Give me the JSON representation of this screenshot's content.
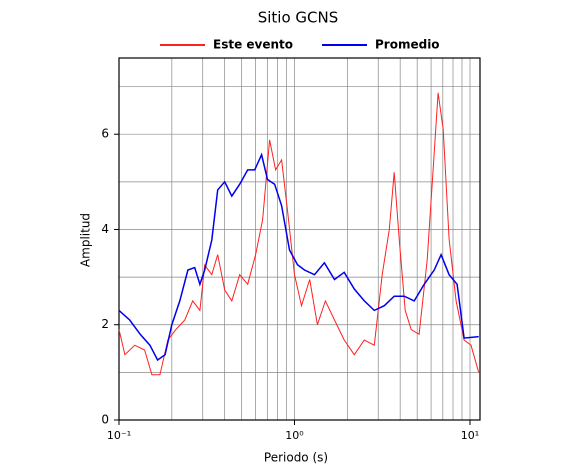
{
  "chart_data": {
    "type": "line",
    "title": "Sitio GCNS",
    "xlabel": "Periodo (s)",
    "ylabel": "Amplitud",
    "xscale": "log",
    "xlim": [
      0.1,
      11.4
    ],
    "ylim": [
      0,
      7.6
    ],
    "xticks": [
      {
        "value": 0.1,
        "label": "10⁻¹"
      },
      {
        "value": 1,
        "label": "10⁰"
      },
      {
        "value": 10,
        "label": "10¹"
      }
    ],
    "xminor": [
      0.2,
      0.3,
      0.4,
      0.5,
      0.6,
      0.7,
      0.8,
      0.9,
      2,
      3,
      4,
      5,
      6,
      7,
      8,
      9
    ],
    "yticks": [
      0,
      2,
      4,
      6
    ],
    "yminor": [
      1,
      3,
      5,
      7
    ],
    "grid": true,
    "series": [
      {
        "name": "Este evento",
        "color": "#ff2020",
        "x": [
          0.1,
          0.108,
          0.123,
          0.14,
          0.154,
          0.171,
          0.19,
          0.211,
          0.237,
          0.263,
          0.289,
          0.308,
          0.338,
          0.365,
          0.4,
          0.439,
          0.487,
          0.541,
          0.6,
          0.658,
          0.721,
          0.78,
          0.844,
          0.912,
          1.0,
          1.096,
          1.22,
          1.35,
          1.5,
          1.69,
          1.92,
          2.19,
          2.5,
          2.85,
          3.16,
          3.47,
          3.7,
          3.95,
          4.27,
          4.62,
          5.13,
          5.7,
          6.16,
          6.58,
          7.03,
          7.6,
          8.33,
          9.25,
          10.13,
          11.2
        ],
        "values": [
          1.9,
          1.37,
          1.57,
          1.47,
          0.95,
          0.95,
          1.68,
          1.9,
          2.1,
          2.5,
          2.3,
          3.25,
          3.05,
          3.47,
          2.73,
          2.5,
          3.05,
          2.85,
          3.47,
          4.2,
          5.88,
          5.25,
          5.46,
          4.4,
          3.05,
          2.4,
          2.95,
          2.0,
          2.5,
          2.1,
          1.68,
          1.37,
          1.68,
          1.57,
          3.05,
          4.0,
          5.2,
          3.8,
          2.3,
          1.9,
          1.8,
          3.36,
          5.25,
          6.87,
          6.1,
          3.8,
          2.5,
          1.68,
          1.57,
          1.0
        ]
      },
      {
        "name": "Promedio",
        "color": "#0000ee",
        "x": [
          0.1,
          0.115,
          0.132,
          0.15,
          0.166,
          0.183,
          0.2,
          0.222,
          0.247,
          0.27,
          0.289,
          0.308,
          0.338,
          0.365,
          0.4,
          0.439,
          0.487,
          0.541,
          0.593,
          0.649,
          0.702,
          0.77,
          0.844,
          0.937,
          1.04,
          1.14,
          1.3,
          1.48,
          1.69,
          1.92,
          2.19,
          2.5,
          2.85,
          3.25,
          3.7,
          4.22,
          4.81,
          5.48,
          6.25,
          6.84,
          7.6,
          8.44,
          9.25,
          11.2
        ],
        "values": [
          2.3,
          2.1,
          1.8,
          1.57,
          1.26,
          1.37,
          2.0,
          2.5,
          3.15,
          3.2,
          2.85,
          3.15,
          3.78,
          4.83,
          5.0,
          4.7,
          4.95,
          5.25,
          5.25,
          5.57,
          5.05,
          4.95,
          4.5,
          3.57,
          3.26,
          3.15,
          3.05,
          3.3,
          2.95,
          3.1,
          2.75,
          2.5,
          2.3,
          2.4,
          2.6,
          2.6,
          2.5,
          2.85,
          3.15,
          3.47,
          3.05,
          2.85,
          1.72,
          1.75
        ]
      }
    ]
  }
}
